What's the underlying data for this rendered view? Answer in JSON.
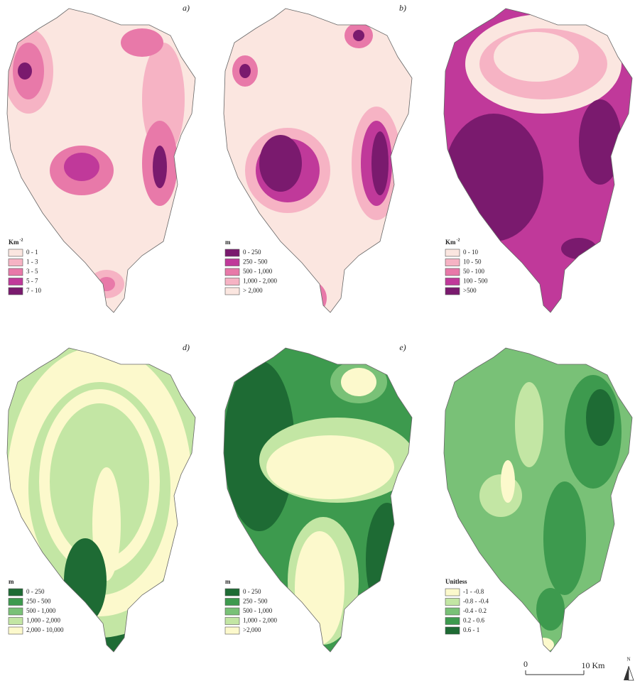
{
  "panels": [
    {
      "label": "a)",
      "legend": {
        "title": "Km",
        "title_sup": "-2",
        "items": [
          {
            "label": "0 - 1",
            "color": "#fbe6e0"
          },
          {
            "label": "1 - 3",
            "color": "#f6b3c4"
          },
          {
            "label": "3 - 5",
            "color": "#e879a9"
          },
          {
            "label": "5 - 7",
            "color": "#c0399a"
          },
          {
            "label": "7 - 10",
            "color": "#7a1a6e"
          }
        ]
      }
    },
    {
      "label": "b)",
      "legend": {
        "title": "m",
        "items": [
          {
            "label": "0 - 250",
            "color": "#7a1a6e"
          },
          {
            "label": "250 - 500",
            "color": "#c0399a"
          },
          {
            "label": "500 - 1,000",
            "color": "#e879a9"
          },
          {
            "label": "1,000 - 2,000",
            "color": "#f6b3c4"
          },
          {
            "label": "> 2,000",
            "color": "#fbe6e0"
          }
        ]
      }
    },
    {
      "legend": {
        "title": "Km",
        "title_sup": "-2",
        "items": [
          {
            "label": "0 - 10",
            "color": "#fbe6e0"
          },
          {
            "label": "10 - 50",
            "color": "#f6b3c4"
          },
          {
            "label": "50 - 100",
            "color": "#e879a9"
          },
          {
            "label": "100 - 500",
            "color": "#c0399a"
          },
          {
            "label": ">500",
            "color": "#7a1a6e"
          }
        ]
      }
    },
    {
      "label": "d)",
      "legend": {
        "title": "m",
        "items": [
          {
            "label": "0 - 250",
            "color": "#1e6b34"
          },
          {
            "label": "250 - 500",
            "color": "#3d9a4e"
          },
          {
            "label": "500 - 1,000",
            "color": "#79c177"
          },
          {
            "label": "1,000 - 2,000",
            "color": "#c3e6a4"
          },
          {
            "label": "2,000 - 10,000",
            "color": "#fcf9cc"
          }
        ]
      }
    },
    {
      "label": "e)",
      "legend": {
        "title": "m",
        "items": [
          {
            "label": "0 - 250",
            "color": "#1e6b34"
          },
          {
            "label": "250 - 500",
            "color": "#3d9a4e"
          },
          {
            "label": "500 - 1,000",
            "color": "#79c177"
          },
          {
            "label": "1,000 - 2,000",
            "color": "#c3e6a4"
          },
          {
            "label": ">2,000",
            "color": "#fcf9cc"
          }
        ]
      }
    },
    {
      "legend": {
        "title": "Unitless",
        "items": [
          {
            "label": "-1 - -0.8",
            "color": "#fcf9cc"
          },
          {
            "label": "-0.8 - -0.4",
            "color": "#c3e6a4"
          },
          {
            "label": "-0.4 - 0.2",
            "color": "#79c177"
          },
          {
            "label": "0.2 - 0.6",
            "color": "#3d9a4e"
          },
          {
            "label": "0.6 - 1",
            "color": "#1e6b34"
          }
        ]
      }
    }
  ],
  "scale_bar": {
    "start": "0",
    "end": "10 Km"
  },
  "north": "N"
}
